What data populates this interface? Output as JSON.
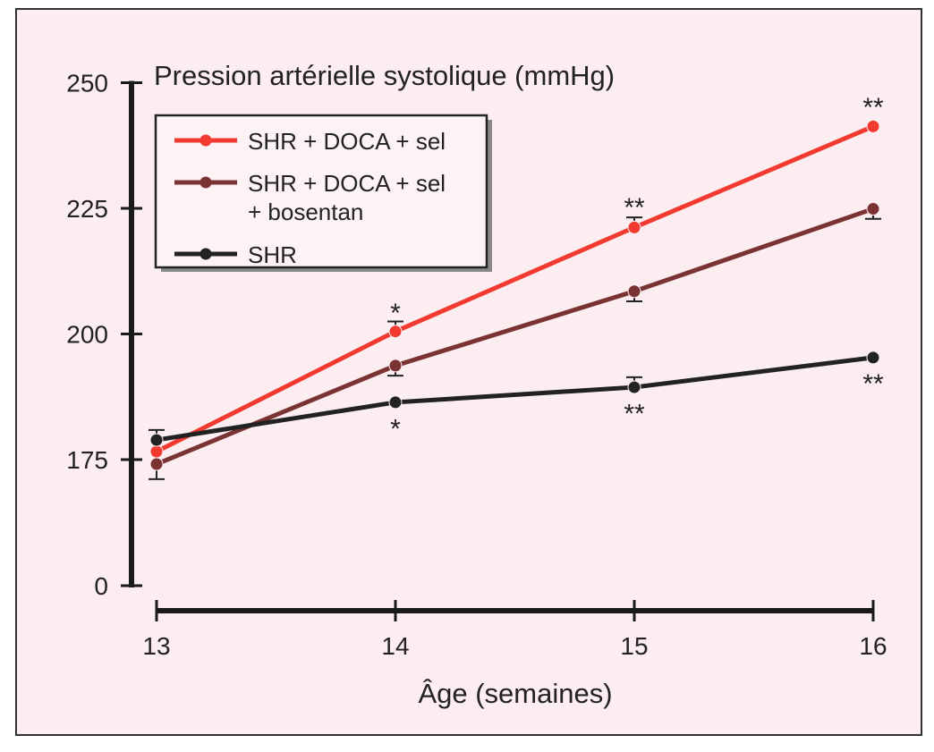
{
  "chart_data": {
    "type": "line",
    "title": "Pression artérielle systolique (mmHg)",
    "xlabel": "Âge (semaines)",
    "ylabel": "Pression artérielle systolique (mmHg)",
    "x": [
      13,
      14,
      15,
      16
    ],
    "x_tick_labels": [
      "13",
      "14",
      "15",
      "16"
    ],
    "y_tick_values": [
      0,
      175,
      200,
      225,
      250
    ],
    "y_tick_labels": [
      "0",
      "175",
      "200",
      "225",
      "250"
    ],
    "ylim": [
      175,
      250
    ],
    "y_axis_break": "0 shown below 175",
    "grid": false,
    "legend_position": "top-left",
    "series": [
      {
        "name": "SHR + DOCA + sel",
        "legend_lines": [
          "SHR + DOCA + sel"
        ],
        "color": "#f23a30",
        "values": [
          176.6,
          200.5,
          221.2,
          241.3
        ],
        "error": [
          0,
          2,
          2,
          0
        ],
        "error_dir": "up"
      },
      {
        "name": "SHR + DOCA + sel + bosentan",
        "legend_lines": [
          "SHR + DOCA + sel",
          "+ bosentan"
        ],
        "color": "#7a3232",
        "values": [
          174.1,
          193.7,
          208.5,
          224.9
        ],
        "error": [
          3,
          2,
          2,
          2
        ],
        "error_dir": "down"
      },
      {
        "name": "SHR",
        "legend_lines": [
          "SHR"
        ],
        "color": "#222222",
        "values": [
          178.9,
          186.4,
          189.4,
          195.3
        ],
        "error": [
          2,
          0,
          2,
          0
        ],
        "error_dir": "up"
      }
    ],
    "annotations": [
      {
        "text": "*",
        "x": 14,
        "y": 204.5
      },
      {
        "text": "*",
        "x": 14,
        "y": 181.5
      },
      {
        "text": "**",
        "x": 15,
        "y": 225.5
      },
      {
        "text": "**",
        "x": 15,
        "y": 184.5
      },
      {
        "text": "**",
        "x": 16,
        "y": 245.5
      },
      {
        "text": "**",
        "x": 16,
        "y": 190.5
      }
    ]
  }
}
